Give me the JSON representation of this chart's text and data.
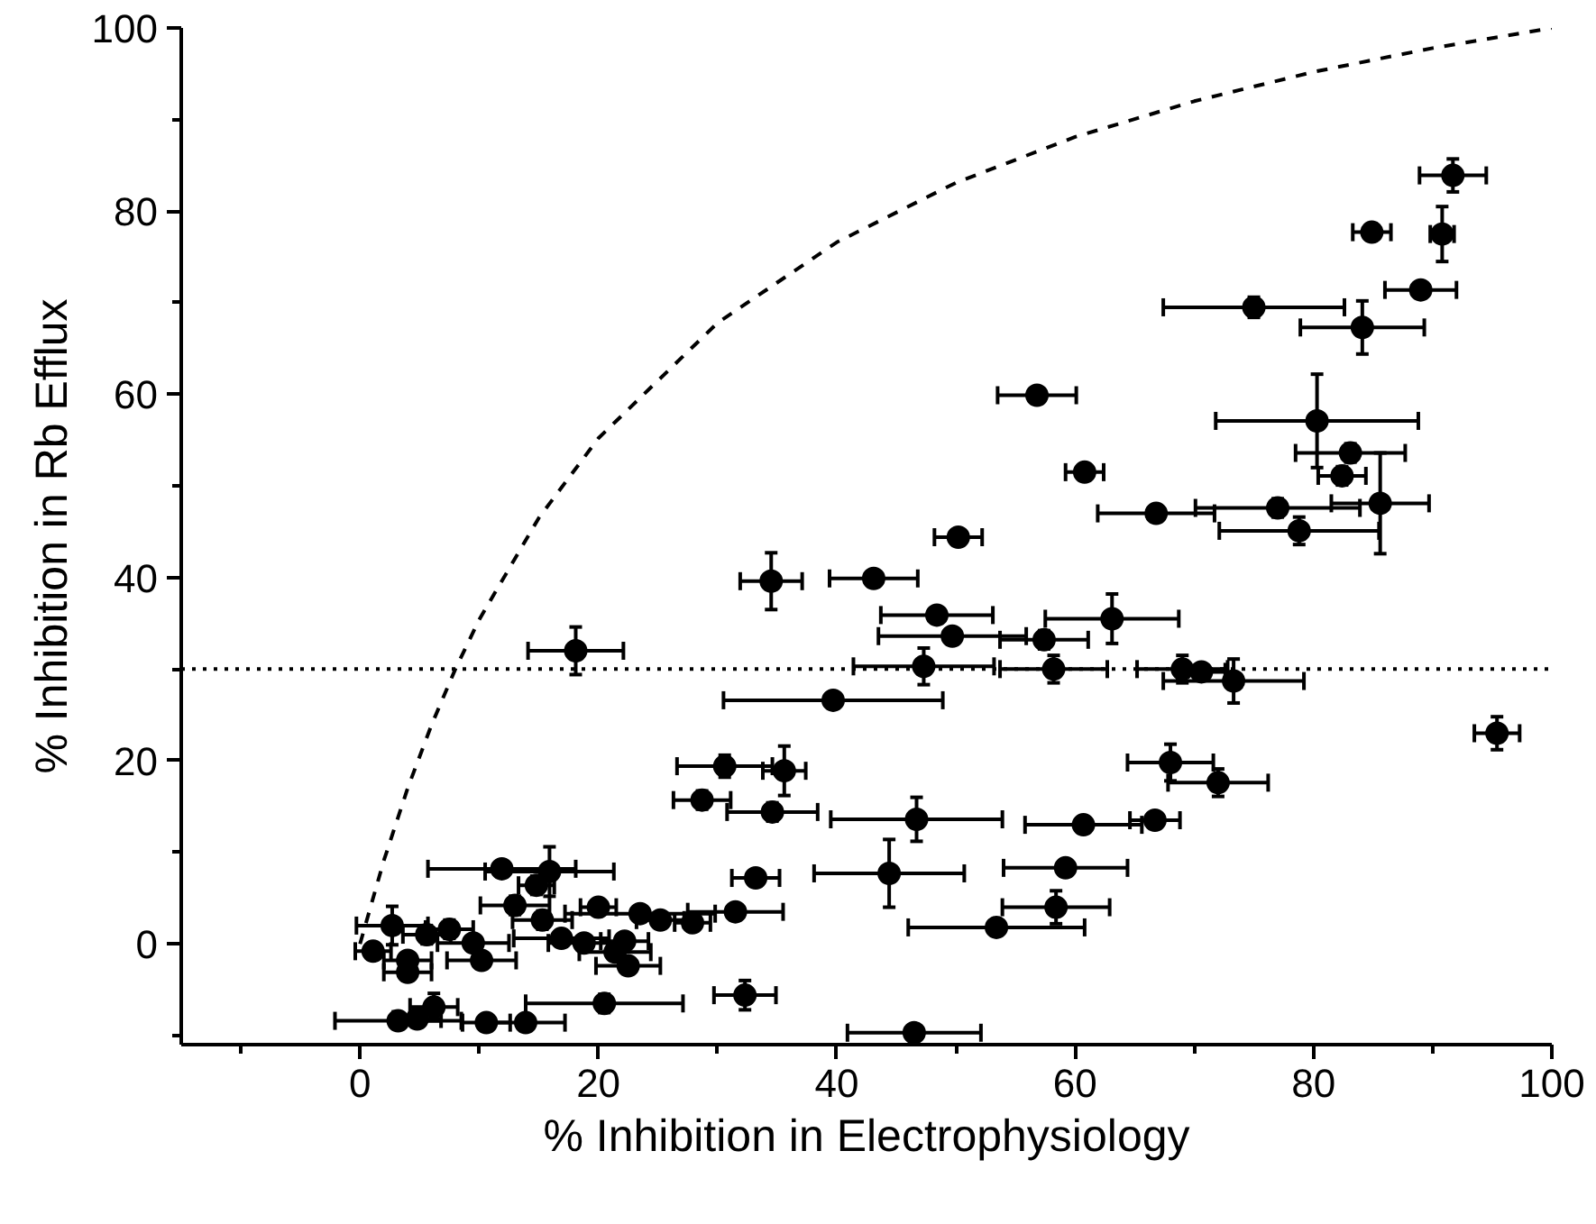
{
  "chart_data": {
    "type": "scatter",
    "xlabel": "% Inhibition in Electrophysiology",
    "ylabel": "% Inhibition in Rb Efflux",
    "xlim": [
      -15,
      100
    ],
    "ylim": [
      -11,
      100
    ],
    "xticks": [
      {
        "value": -10,
        "label": null
      },
      0,
      {
        "value": 10,
        "label": null
      },
      20,
      {
        "value": 30,
        "label": null
      },
      40,
      {
        "value": 50,
        "label": null
      },
      60,
      {
        "value": 70,
        "label": null
      },
      80,
      {
        "value": 90,
        "label": null
      },
      100
    ],
    "yticks": [
      {
        "value": -10,
        "label": null
      },
      0,
      {
        "value": 10,
        "label": null
      },
      20,
      {
        "value": 30,
        "label": null
      },
      40,
      {
        "value": 50,
        "label": null
      },
      60,
      {
        "value": 70,
        "label": null
      },
      80,
      {
        "value": 90,
        "label": null
      },
      100
    ],
    "ref_lines": [
      {
        "axis": "y",
        "value": 30,
        "color": "#000000",
        "line_style": "dotted"
      }
    ],
    "series": [
      {
        "type": "line",
        "color": "#000000",
        "line_style": "dashed",
        "marker": "none",
        "x": [
          0,
          2,
          4,
          6,
          8,
          10,
          15,
          20,
          30,
          40,
          50,
          60,
          70,
          80,
          90,
          100
        ],
        "values": [
          0,
          9.1,
          17.0,
          23.9,
          30.0,
          35.4,
          46.5,
          55.2,
          67.8,
          76.6,
          83.1,
          88.1,
          92.0,
          95.2,
          97.8,
          100
        ]
      },
      {
        "color": "#000000",
        "marker": "circle",
        "x": [
          91.7,
          84.9,
          90.8,
          89.0,
          75.0,
          84.1,
          56.8,
          80.3,
          83.1,
          60.8,
          82.4,
          85.6,
          77.0,
          66.8,
          78.8,
          50.2,
          34.5,
          43.1,
          48.4,
          63.1,
          49.7,
          57.4,
          18.1,
          47.3,
          58.2,
          69.0,
          70.6,
          73.3,
          39.7,
          95.4,
          68.0,
          30.6,
          35.6,
          72.0,
          28.7,
          34.6,
          46.7,
          60.7,
          66.7,
          11.9,
          15.9,
          14.8,
          33.2,
          44.4,
          59.2,
          58.4,
          53.4,
          31.5,
          13.0,
          20.0,
          23.5,
          25.2,
          27.9,
          2.7,
          5.6,
          7.5,
          9.5,
          15.3,
          16.9,
          18.8,
          21.4,
          22.2,
          22.5,
          10.2,
          4.0,
          1.1,
          4.0,
          6.2,
          3.2,
          4.8,
          10.6,
          13.9,
          20.5,
          32.3,
          46.5
        ],
        "values": [
          83.9,
          77.7,
          77.5,
          71.4,
          69.5,
          67.3,
          59.9,
          57.1,
          53.6,
          51.5,
          51.1,
          48.1,
          47.6,
          47.0,
          45.1,
          44.4,
          39.6,
          39.9,
          35.9,
          35.5,
          33.6,
          33.2,
          32.0,
          30.3,
          30.0,
          30.0,
          29.7,
          28.7,
          26.6,
          23.0,
          19.8,
          19.4,
          18.9,
          17.6,
          15.7,
          14.4,
          13.6,
          13.0,
          13.5,
          8.2,
          7.9,
          6.4,
          7.2,
          7.7,
          8.3,
          4.0,
          1.8,
          3.5,
          4.2,
          4.0,
          3.3,
          2.6,
          2.3,
          2.0,
          1.0,
          1.6,
          0.1,
          2.6,
          0.6,
          0.1,
          -0.9,
          0.3,
          -2.4,
          -1.8,
          -1.8,
          -0.8,
          -3.1,
          -6.9,
          -8.4,
          -8.2,
          -8.6,
          -8.6,
          -6.5,
          -5.6,
          -9.7
        ],
        "xerrors": [
          2.8,
          1.6,
          1.0,
          3.0,
          7.6,
          5.2,
          3.3,
          8.5,
          4.6,
          1.6,
          2.0,
          4.1,
          6.9,
          4.9,
          6.7,
          2.0,
          2.6,
          3.7,
          4.7,
          5.6,
          6.2,
          3.7,
          4.0,
          5.9,
          4.5,
          3.8,
          2.0,
          5.9,
          9.2,
          1.9,
          3.6,
          4.0,
          1.8,
          4.2,
          2.4,
          3.8,
          7.2,
          4.9,
          2.1,
          6.2,
          5.4,
          1.5,
          2.0,
          6.3,
          5.2,
          4.5,
          7.4,
          4.0,
          2.9,
          1.5,
          6.3,
          2.0,
          1.5,
          3.0,
          2.0,
          2.0,
          3.0,
          2.5,
          4.0,
          3.0,
          3.0,
          2.0,
          2.7,
          2.9,
          2.0,
          1.5,
          2.0,
          2.0,
          5.3,
          2.0,
          2.0,
          3.3,
          6.6,
          2.6,
          5.6
        ],
        "errors": [
          1.8,
          0.8,
          3.0,
          0.8,
          1.1,
          2.9,
          0.8,
          5.1,
          1.0,
          0.8,
          1.0,
          5.5,
          1.0,
          0.8,
          1.5,
          0.8,
          3.1,
          0.8,
          0.8,
          2.7,
          0.8,
          1.0,
          2.6,
          2.0,
          1.5,
          1.5,
          0.8,
          2.4,
          0.8,
          1.8,
          2.0,
          1.2,
          2.7,
          1.5,
          1.0,
          1.0,
          2.4,
          0.8,
          0.8,
          0.8,
          2.7,
          1.0,
          0.8,
          3.7,
          0.8,
          1.8,
          0.8,
          0.8,
          1.0,
          0.8,
          0.8,
          0.8,
          0.8,
          2.1,
          1.0,
          1.0,
          0.8,
          1.0,
          0.8,
          0.8,
          0.8,
          0.8,
          0.8,
          0.8,
          0.8,
          0.8,
          0.8,
          1.5,
          0.8,
          0.8,
          0.8,
          0.8,
          1.0,
          1.6,
          0.8
        ]
      }
    ]
  }
}
